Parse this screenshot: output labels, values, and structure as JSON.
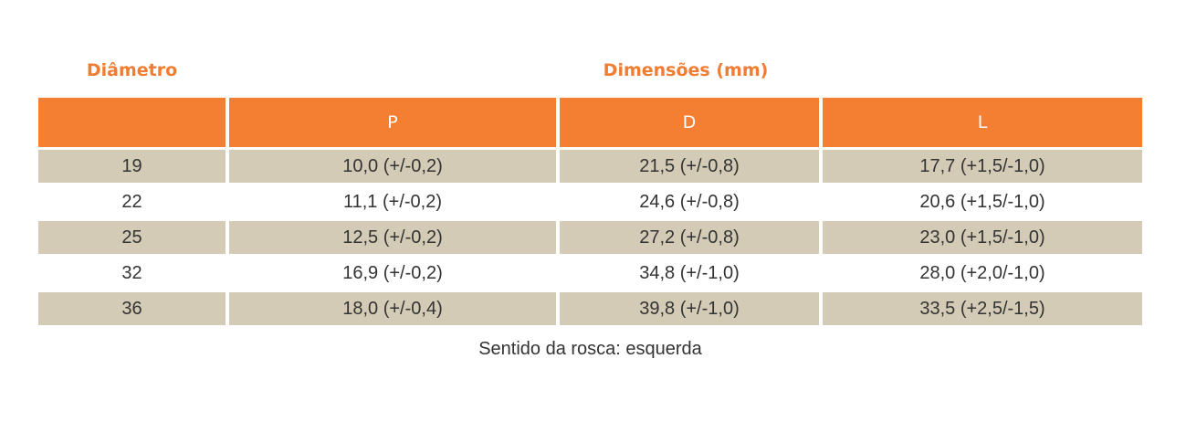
{
  "header": {
    "diameter_label": "Diâmetro",
    "dimensions_label": "Dimensões  (mm)"
  },
  "table": {
    "columns": [
      "",
      "P",
      "D",
      "L"
    ],
    "rows": [
      [
        "19",
        "10,0 (+/-0,2)",
        "21,5 (+/-0,8)",
        "17,7 (+1,5/-1,0)"
      ],
      [
        "22",
        "11,1 (+/-0,2)",
        "24,6 (+/-0,8)",
        "20,6 (+1,5/-1,0)"
      ],
      [
        "25",
        "12,5 (+/-0,2)",
        "27,2 (+/-0,8)",
        "23,0 (+1,5/-1,0)"
      ],
      [
        "32",
        "16,9 (+/-0,2)",
        "34,8 (+/-1,0)",
        "28,0 (+2,0/-1,0)"
      ],
      [
        "36",
        "18,0 (+/-0,4)",
        "39,8 (+/-1,0)",
        "33,5 (+2,5/-1,5)"
      ]
    ]
  },
  "footnote": "Sentido da rosca: esquerda",
  "colors": {
    "accent": "#f47f33",
    "row_shaded": "#d3cbb5",
    "text": "#333333"
  }
}
